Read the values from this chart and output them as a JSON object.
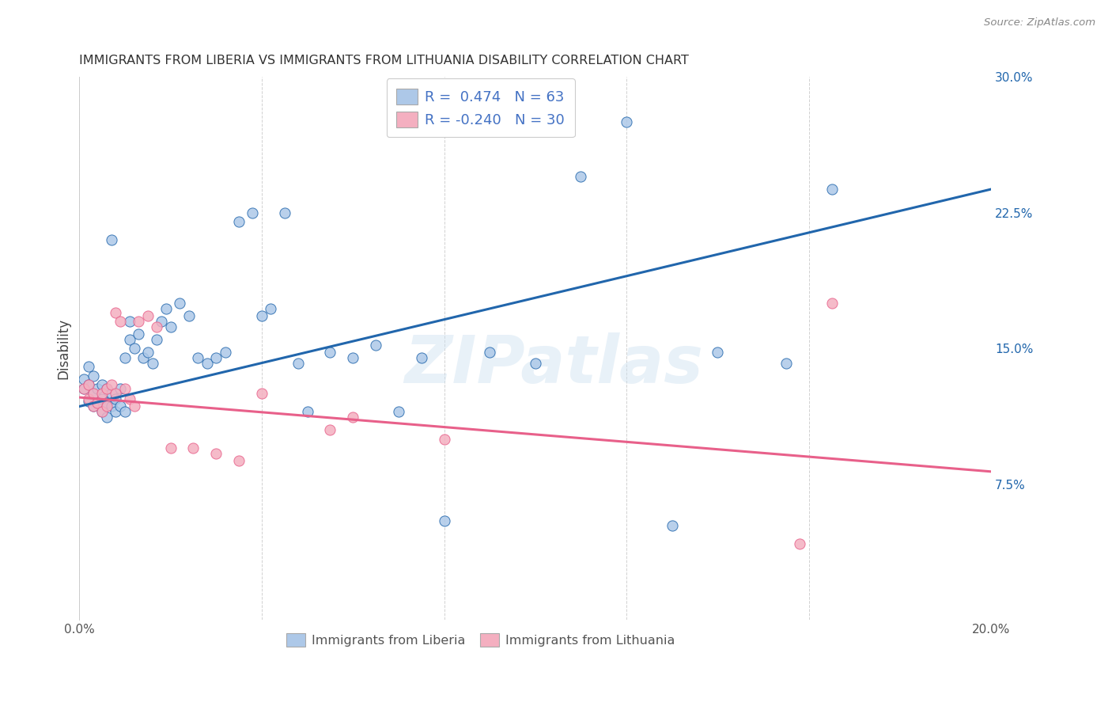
{
  "title": "IMMIGRANTS FROM LIBERIA VS IMMIGRANTS FROM LITHUANIA DISABILITY CORRELATION CHART",
  "source": "Source: ZipAtlas.com",
  "ylabel": "Disability",
  "xlim": [
    0.0,
    0.2
  ],
  "ylim": [
    0.0,
    0.3
  ],
  "yticks_right": [
    0.075,
    0.15,
    0.225,
    0.3
  ],
  "ytick_right_labels": [
    "7.5%",
    "15.0%",
    "22.5%",
    "30.0%"
  ],
  "liberia_color": "#adc8e8",
  "liberia_line_color": "#2166ac",
  "lithuania_color": "#f4afc0",
  "lithuania_line_color": "#e8608a",
  "legend_text_color": "#4472c4",
  "r_liberia": 0.474,
  "n_liberia": 63,
  "r_lithuania": -0.24,
  "n_lithuania": 30,
  "watermark": "ZIPatlas",
  "liberia_x": [
    0.001,
    0.001,
    0.002,
    0.002,
    0.002,
    0.003,
    0.003,
    0.003,
    0.004,
    0.004,
    0.005,
    0.005,
    0.005,
    0.006,
    0.006,
    0.006,
    0.007,
    0.007,
    0.007,
    0.008,
    0.008,
    0.009,
    0.009,
    0.01,
    0.01,
    0.011,
    0.011,
    0.012,
    0.013,
    0.014,
    0.015,
    0.016,
    0.017,
    0.018,
    0.019,
    0.02,
    0.022,
    0.024,
    0.026,
    0.028,
    0.03,
    0.032,
    0.035,
    0.038,
    0.04,
    0.042,
    0.045,
    0.048,
    0.05,
    0.055,
    0.06,
    0.065,
    0.07,
    0.075,
    0.08,
    0.09,
    0.1,
    0.11,
    0.12,
    0.13,
    0.14,
    0.155,
    0.165
  ],
  "liberia_y": [
    0.128,
    0.133,
    0.121,
    0.13,
    0.14,
    0.118,
    0.125,
    0.135,
    0.12,
    0.128,
    0.115,
    0.122,
    0.13,
    0.112,
    0.12,
    0.128,
    0.118,
    0.125,
    0.21,
    0.115,
    0.122,
    0.118,
    0.128,
    0.115,
    0.145,
    0.155,
    0.165,
    0.15,
    0.158,
    0.145,
    0.148,
    0.142,
    0.155,
    0.165,
    0.172,
    0.162,
    0.175,
    0.168,
    0.145,
    0.142,
    0.145,
    0.148,
    0.22,
    0.225,
    0.168,
    0.172,
    0.225,
    0.142,
    0.115,
    0.148,
    0.145,
    0.152,
    0.115,
    0.145,
    0.055,
    0.148,
    0.142,
    0.245,
    0.275,
    0.052,
    0.148,
    0.142,
    0.238
  ],
  "lithuania_x": [
    0.001,
    0.002,
    0.002,
    0.003,
    0.003,
    0.004,
    0.005,
    0.005,
    0.006,
    0.006,
    0.007,
    0.008,
    0.008,
    0.009,
    0.01,
    0.011,
    0.012,
    0.013,
    0.015,
    0.017,
    0.02,
    0.025,
    0.03,
    0.035,
    0.04,
    0.055,
    0.06,
    0.08,
    0.158,
    0.165
  ],
  "lithuania_y": [
    0.128,
    0.122,
    0.13,
    0.118,
    0.125,
    0.12,
    0.115,
    0.125,
    0.118,
    0.128,
    0.13,
    0.125,
    0.17,
    0.165,
    0.128,
    0.122,
    0.118,
    0.165,
    0.168,
    0.162,
    0.095,
    0.095,
    0.092,
    0.088,
    0.125,
    0.105,
    0.112,
    0.1,
    0.042,
    0.175
  ]
}
